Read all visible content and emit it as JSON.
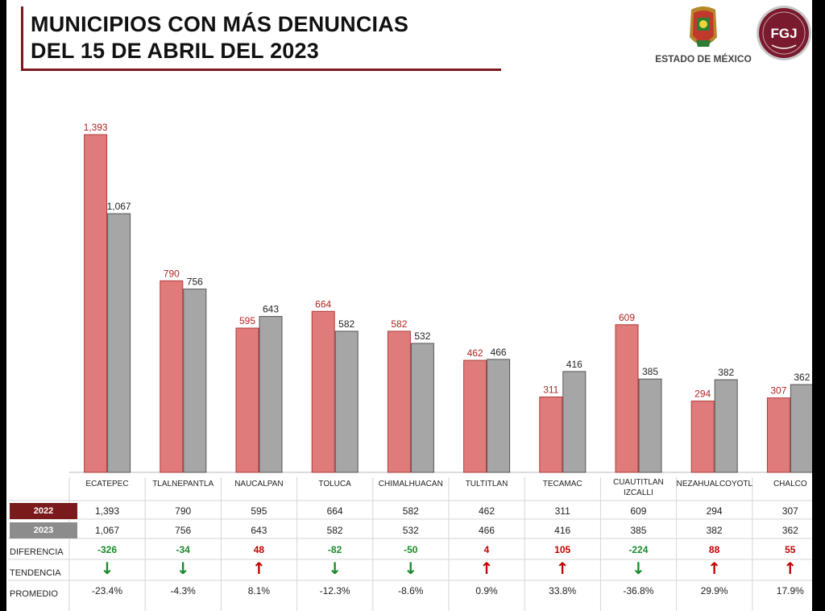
{
  "header": {
    "title_line1": "MUNICIPIOS CON MÁS DENUNCIAS",
    "title_line2": "DEL 15 DE ABRIL DEL 2023",
    "logo_left_text": "ESTADO DE MÉXICO",
    "logo_right_text": "FGJ"
  },
  "colors": {
    "series_2022": "#e07b7b",
    "series_2023": "#a6a6a6",
    "label_2022": "#b22222",
    "label_2023": "#222222",
    "positive_diff": "#c00000",
    "negative_diff": "#1a8a2a",
    "accent": "#7a1a1c"
  },
  "chart_data": {
    "type": "bar",
    "title": "MUNICIPIOS CON MÁS DENUNCIAS DEL 15 DE ABRIL DEL 2023",
    "categories": [
      "ECATEPEC",
      "TLALNEPANTLA",
      "NAUCALPAN",
      "TOLUCA",
      "CHIMALHUACAN",
      "TULTITLAN",
      "TECAMAC",
      "CUAUTITLAN IZCALLI",
      "NEZAHUALCOYOTL",
      "CHALCO"
    ],
    "categories_display": [
      [
        "ECATEPEC"
      ],
      [
        "TLALNEPANTLA"
      ],
      [
        "NAUCALPAN"
      ],
      [
        "TOLUCA"
      ],
      [
        "CHIMALHUACAN"
      ],
      [
        "TULTITLAN"
      ],
      [
        "TECAMAC"
      ],
      [
        "CUAUTITLAN",
        "IZCALLI"
      ],
      [
        "NEZAHUALCOYOTL"
      ],
      [
        "CHALCO"
      ]
    ],
    "series": [
      {
        "name": "2022",
        "values": [
          1393,
          790,
          595,
          664,
          582,
          462,
          311,
          609,
          294,
          307
        ],
        "labels": [
          "1,393",
          "790",
          "595",
          "664",
          "582",
          "462",
          "311",
          "609",
          "294",
          "307"
        ]
      },
      {
        "name": "2023",
        "values": [
          1067,
          756,
          643,
          582,
          532,
          466,
          416,
          385,
          382,
          362
        ],
        "labels": [
          "1,067",
          "756",
          "643",
          "582",
          "532",
          "466",
          "416",
          "385",
          "382",
          "362"
        ]
      }
    ],
    "ylim": [
      0,
      1393
    ],
    "grid": false,
    "xlabel": "",
    "ylabel": ""
  },
  "table": {
    "row_labels": {
      "y2022": "2022",
      "y2023": "2023",
      "diferencia": "DIFERENCIA",
      "tendencia": "TENDENCIA",
      "promedio": "PROMEDIO"
    },
    "diferencia": [
      "-326",
      "-34",
      "48",
      "-82",
      "-50",
      "4",
      "105",
      "-224",
      "88",
      "55"
    ],
    "tendencia": [
      "down",
      "down",
      "up",
      "down",
      "down",
      "up",
      "up",
      "down",
      "up",
      "up"
    ],
    "promedio": [
      "-23.4%",
      "-4.3%",
      "8.1%",
      "-12.3%",
      "-8.6%",
      "0.9%",
      "33.8%",
      "-36.8%",
      "29.9%",
      "17.9%"
    ]
  }
}
